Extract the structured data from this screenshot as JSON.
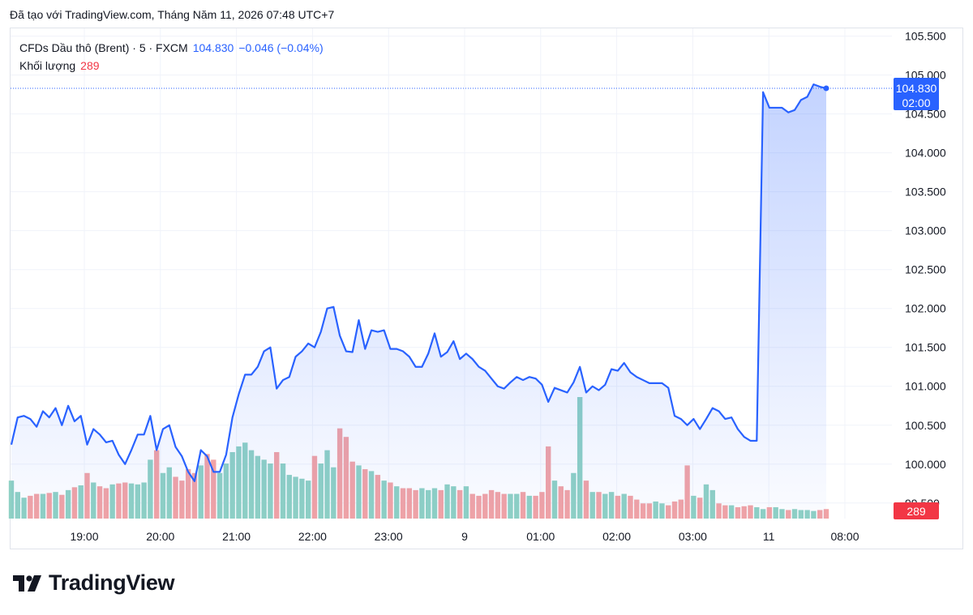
{
  "header": {
    "created": "Đã tạo với TradingView.com, Tháng Năm 11, 2026 07:48 UTC+7"
  },
  "legend": {
    "symbol": "CFDs Dầu thô (Brent) · 5 · FXCM",
    "last": "104.830",
    "change": "−0.046 (−0.04%)",
    "volume_label": "Khối lượng",
    "volume_value": "289"
  },
  "brand": {
    "name": "TradingView"
  },
  "colors": {
    "line": "#2962ff",
    "area_top": "rgba(41,98,255,0.28)",
    "area_bottom": "rgba(41,98,255,0.02)",
    "vol_up": "#8fd1c4",
    "vol_down": "#f2a3a5",
    "grid": "#f0f3fa",
    "axis_text": "#131722",
    "price_label_bg": "#2962ff",
    "vol_label_bg": "#f23645"
  },
  "chart_data": {
    "type": "area",
    "title": "",
    "xlabel": "",
    "ylabel": "",
    "x_ticks": [
      "19:00",
      "20:00",
      "21:00",
      "22:00",
      "23:00",
      "9",
      "01:00",
      "02:00",
      "03:00",
      "11",
      "08:00"
    ],
    "y_ticks": [
      "99.500",
      "100.000",
      "100.500",
      "101.000",
      "101.500",
      "102.000",
      "102.500",
      "103.000",
      "103.500",
      "104.000",
      "104.500",
      "105.000",
      "105.500"
    ],
    "ylim": [
      99.3,
      105.6
    ],
    "last_price": 104.83,
    "last_price_label": "104.830",
    "last_price_time": "02:00",
    "last_volume_label": "289",
    "series": [
      {
        "price": [
          100.25,
          100.6,
          100.62,
          100.58,
          100.48,
          100.68,
          100.6,
          100.72,
          100.5,
          100.75,
          100.55,
          100.62,
          100.25,
          100.45,
          100.38,
          100.28,
          100.3,
          100.12,
          100.0,
          100.18,
          100.38,
          100.38,
          100.62,
          100.18,
          100.45,
          100.5,
          100.22,
          100.1,
          99.9,
          99.78,
          100.18,
          100.1,
          99.9,
          99.9,
          100.12,
          100.6,
          100.9,
          101.15,
          101.15,
          101.25,
          101.45,
          101.5,
          100.97,
          101.08,
          101.12,
          101.38,
          101.45,
          101.55,
          101.5,
          101.7,
          102.0,
          102.02,
          101.65,
          101.45,
          101.44,
          101.85,
          101.48,
          101.72,
          101.7,
          101.72,
          101.48,
          101.48,
          101.45,
          101.38,
          101.25,
          101.25,
          101.42,
          101.68,
          101.38,
          101.44,
          101.58,
          101.35,
          101.42,
          101.35,
          101.25,
          101.2,
          101.1,
          101.0,
          100.97,
          101.05,
          101.12,
          101.08,
          101.12,
          101.1,
          101.02,
          100.8,
          100.98,
          100.95,
          100.92,
          101.05,
          101.25,
          100.92,
          101.0,
          100.95,
          101.02,
          101.22,
          101.2,
          101.3,
          101.18,
          101.12,
          101.08,
          101.04,
          101.04,
          101.04,
          100.98,
          100.62,
          100.58,
          100.5,
          100.58,
          100.45,
          100.58,
          100.72,
          100.68,
          100.58,
          100.6,
          100.45,
          100.35,
          100.3,
          100.3,
          104.78,
          104.58,
          104.58,
          104.58,
          104.52,
          104.55,
          104.68,
          104.72,
          104.88,
          104.85,
          104.83
        ]
      },
      {
        "volume": [
          40,
          28,
          22,
          24,
          26,
          26,
          27,
          28,
          25,
          30,
          33,
          35,
          48,
          38,
          34,
          32,
          36,
          37,
          38,
          37,
          36,
          38,
          62,
          72,
          48,
          54,
          44,
          40,
          52,
          48,
          56,
          68,
          62,
          48,
          58,
          70,
          76,
          80,
          72,
          66,
          62,
          58,
          70,
          58,
          46,
          44,
          42,
          40,
          66,
          58,
          72,
          54,
          95,
          86,
          60,
          56,
          52,
          50,
          46,
          40,
          38,
          34,
          32,
          32,
          30,
          32,
          30,
          32,
          30,
          36,
          34,
          30,
          34,
          26,
          24,
          26,
          30,
          28,
          26,
          26,
          26,
          28,
          24,
          24,
          28,
          76,
          40,
          34,
          30,
          48,
          128,
          40,
          28,
          28,
          26,
          28,
          24,
          26,
          24,
          20,
          16,
          16,
          18,
          16,
          14,
          18,
          20,
          56,
          24,
          22,
          36,
          30,
          16,
          14,
          14,
          12,
          13,
          14,
          12,
          10,
          12,
          12,
          10,
          9,
          10,
          9,
          9,
          8,
          9,
          10
        ]
      }
    ]
  }
}
